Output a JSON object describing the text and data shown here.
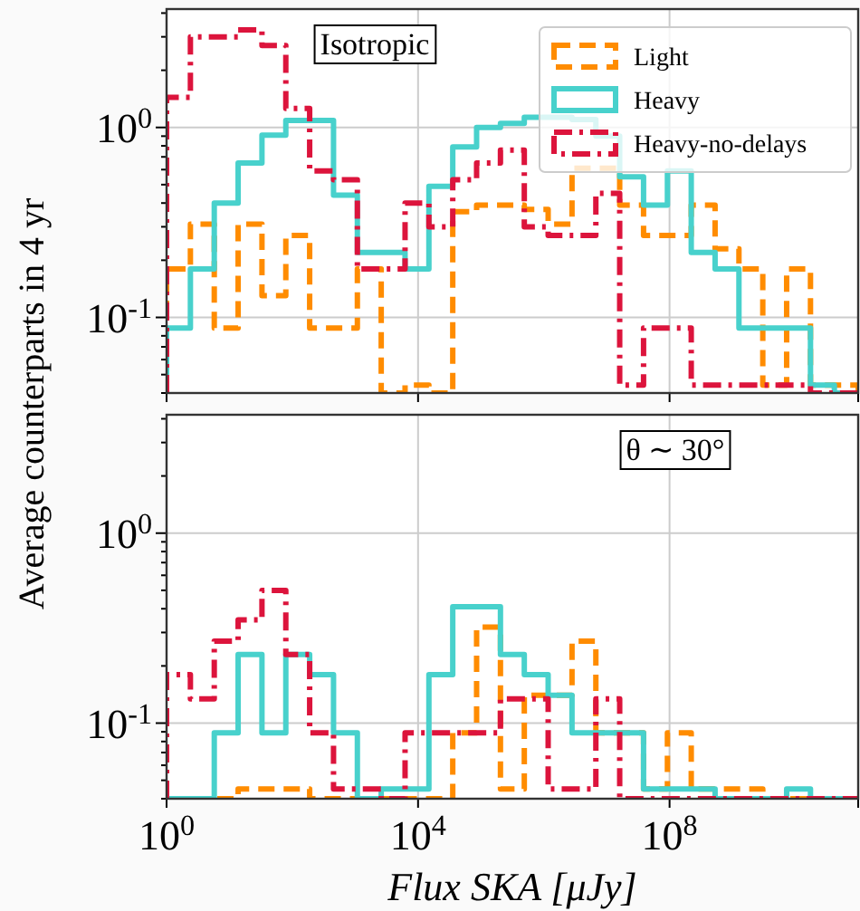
{
  "chart_data": [
    {
      "type": "histogram",
      "ylabel": "Average counterparts in 4 yr",
      "annotations": [
        "Isotropic"
      ],
      "bins": [
        1,
        2.394,
        5.735,
        13.74,
        32.9,
        78.82,
        188.7,
        452.2,
        1083,
        2593,
        6211,
        14870,
        35620,
        85310,
        204300,
        489300,
        1172000,
        2808000,
        6724000,
        16100000,
        38570000,
        92370000,
        221200000,
        529800000,
        1269000000,
        3039000000,
        7279000000,
        17430000000,
        41760000000,
        100000000000
      ],
      "xlim": [
        1,
        100000000000
      ],
      "xticks": [
        1,
        10000,
        100000000
      ],
      "ylim": [
        0.04,
        4.2
      ],
      "yticks": [
        {
          "value": 0.04,
          "label": null
        },
        {
          "value": 0.05,
          "label": null
        },
        {
          "value": 0.06,
          "label": null
        },
        {
          "value": 0.07,
          "label": null
        },
        {
          "value": 0.08,
          "label": null
        },
        {
          "value": 0.09,
          "label": null
        },
        {
          "value": 0.1,
          "label": "10$^{-1}$"
        },
        {
          "value": 0.2,
          "label": null
        },
        {
          "value": 0.3,
          "label": null
        },
        {
          "value": 0.4,
          "label": null
        },
        {
          "value": 0.5,
          "label": null
        },
        {
          "value": 0.6,
          "label": null
        },
        {
          "value": 0.7,
          "label": null
        },
        {
          "value": 0.8,
          "label": null
        },
        {
          "value": 0.9,
          "label": null
        },
        {
          "value": 1,
          "label": "10$^{0}$"
        },
        {
          "value": 2,
          "label": null
        },
        {
          "value": 3,
          "label": null
        },
        {
          "value": 4,
          "label": null
        }
      ],
      "log": "xy",
      "grid": true,
      "legend": "top right",
      "tick_labels": "y",
      "series": [
        {
          "name": "Light",
          "color": "#ff8c00",
          "line_style": "dashed",
          "values": [
            0.18,
            0.31,
            0.088,
            0.31,
            0.13,
            0.27,
            0.088,
            0.088,
            0.18,
            null,
            0.044,
            null,
            0.36,
            0.39,
            0.39,
            0.37,
            0.31,
            0.61,
            0.61,
            0.39,
            0.27,
            0.27,
            0.39,
            0.23,
            0.18,
            0.044,
            0.18,
            0.044,
            0.044
          ]
        },
        {
          "name": "Heavy",
          "color": "#48d1cc",
          "line_style": "solid",
          "values": [
            0.088,
            0.18,
            0.4,
            0.65,
            0.91,
            1.09,
            1.09,
            0.44,
            0.22,
            0.22,
            0.18,
            0.49,
            0.79,
            1.0,
            1.05,
            1.13,
            1.13,
            1.1,
            0.9,
            0.55,
            0.39,
            0.59,
            0.22,
            0.18,
            0.088,
            0.088,
            0.088,
            0.044,
            null
          ]
        },
        {
          "name": "Heavy-no-delays",
          "color": "#dc143c",
          "line_style": "dashdot",
          "values": [
            1.44,
            3.0,
            3.0,
            3.26,
            2.7,
            1.26,
            0.59,
            0.53,
            0.18,
            0.18,
            0.4,
            0.3,
            0.53,
            0.65,
            0.76,
            0.3,
            0.27,
            0.27,
            0.45,
            0.044,
            0.088,
            0.088,
            0.044,
            0.044,
            0.044,
            0.044,
            0.044,
            null,
            null
          ]
        }
      ]
    },
    {
      "type": "histogram",
      "xlabel": "Flux SKA [μJy]",
      "annotations": [
        "θ ∼ 30°"
      ],
      "bins": [
        1,
        2.394,
        5.735,
        13.74,
        32.9,
        78.82,
        188.7,
        452.2,
        1083,
        2593,
        6211,
        14870,
        35620,
        85310,
        204300,
        489300,
        1172000,
        2808000,
        6724000,
        16100000,
        38570000,
        92370000,
        221200000,
        529800000,
        1269000000,
        3039000000,
        7279000000,
        17430000000,
        41760000000,
        100000000000
      ],
      "xlim": [
        1,
        100000000000
      ],
      "xticks": [
        {
          "value": 1,
          "label": "10$^{0}$"
        },
        {
          "value": 10000,
          "label": "10$^{4}$"
        },
        {
          "value": 100000000,
          "label": "10$^{8}$"
        }
      ],
      "ylim": [
        0.04,
        4.2
      ],
      "yticks": [
        {
          "value": 0.04,
          "label": null
        },
        {
          "value": 0.05,
          "label": null
        },
        {
          "value": 0.06,
          "label": null
        },
        {
          "value": 0.07,
          "label": null
        },
        {
          "value": 0.08,
          "label": null
        },
        {
          "value": 0.09,
          "label": null
        },
        {
          "value": 0.1,
          "label": "10$^{-1}$"
        },
        {
          "value": 0.2,
          "label": null
        },
        {
          "value": 0.3,
          "label": null
        },
        {
          "value": 0.4,
          "label": null
        },
        {
          "value": 0.5,
          "label": null
        },
        {
          "value": 0.6,
          "label": null
        },
        {
          "value": 0.7,
          "label": null
        },
        {
          "value": 0.8,
          "label": null
        },
        {
          "value": 0.9,
          "label": null
        },
        {
          "value": 1,
          "label": "10$^{0}$"
        },
        {
          "value": 2,
          "label": null
        },
        {
          "value": 3,
          "label": null
        },
        {
          "value": 4,
          "label": null
        }
      ],
      "log": "xy",
      "grid": true,
      "series": [
        {
          "color": "#ff8c00",
          "line_style": "dashed",
          "values": [
            null,
            null,
            null,
            0.045,
            0.045,
            0.045,
            null,
            null,
            null,
            null,
            null,
            null,
            0.089,
            0.32,
            0.045,
            0.14,
            0.14,
            0.27,
            0.089,
            0.089,
            0.045,
            0.089,
            0.045,
            0.045,
            0.045,
            null,
            null,
            null,
            null
          ]
        },
        {
          "color": "#48d1cc",
          "line_style": "solid",
          "values": [
            null,
            null,
            0.089,
            0.23,
            0.089,
            0.23,
            0.18,
            0.089,
            null,
            0.045,
            0.045,
            0.18,
            0.41,
            0.41,
            0.23,
            0.18,
            0.14,
            0.089,
            0.089,
            0.089,
            0.045,
            0.045,
            0.045,
            null,
            null,
            null,
            0.045,
            null,
            null
          ]
        },
        {
          "color": "#dc143c",
          "line_style": "dashdot",
          "values": [
            0.18,
            0.134,
            0.27,
            0.35,
            0.5,
            0.23,
            0.089,
            0.045,
            0.045,
            null,
            0.089,
            0.089,
            0.089,
            0.089,
            0.134,
            0.134,
            0.045,
            0.045,
            0.134,
            null,
            null,
            null,
            null,
            null,
            null,
            null,
            null,
            null,
            null
          ]
        }
      ]
    }
  ]
}
